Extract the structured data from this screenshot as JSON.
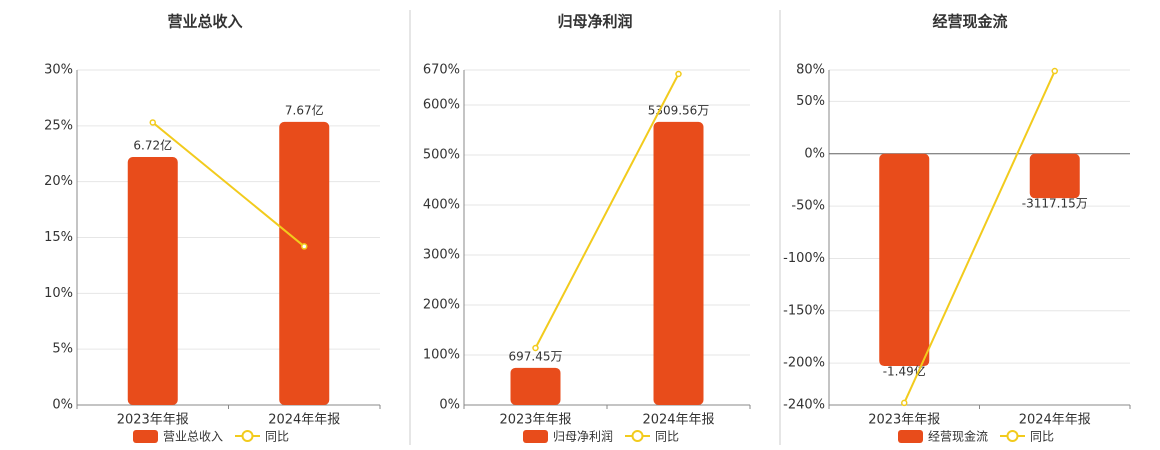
{
  "chart_data": [
    {
      "type": "bar",
      "title": "营业总收入",
      "categories": [
        "2023年年报",
        "2024年年报"
      ],
      "series": [
        {
          "name": "营业总收入",
          "color": "#e84c1b",
          "values": [
            672000000,
            767000000
          ],
          "value_labels": [
            "6.72亿",
            "7.67亿"
          ]
        },
        {
          "name": "同比",
          "color": "#f2cb1d",
          "type": "line",
          "values": [
            25.3,
            14.2
          ]
        }
      ],
      "ylim": [
        0,
        30
      ],
      "yticks": [
        {
          "value": 0,
          "label": "0%"
        },
        {
          "value": 5,
          "label": "5%"
        },
        {
          "value": 10,
          "label": "10%"
        },
        {
          "value": 15,
          "label": "15%"
        },
        {
          "value": 20,
          "label": "20%"
        },
        {
          "value": 25,
          "label": "25%"
        },
        {
          "value": 30,
          "label": "30%"
        }
      ],
      "grid": true
    },
    {
      "type": "bar",
      "title": "归母净利润",
      "categories": [
        "2023年年报",
        "2024年年报"
      ],
      "series": [
        {
          "name": "归母净利润",
          "color": "#e84c1b",
          "values": [
            6974500,
            53095600
          ],
          "value_labels": [
            "697.45万",
            "5309.56万"
          ]
        },
        {
          "name": "同比",
          "color": "#f2cb1d",
          "type": "line",
          "values": [
            114,
            662
          ]
        }
      ],
      "ylim": [
        0,
        670
      ],
      "yticks": [
        {
          "value": 0,
          "label": "0%"
        },
        {
          "value": 100,
          "label": "100%"
        },
        {
          "value": 200,
          "label": "200%"
        },
        {
          "value": 300,
          "label": "300%"
        },
        {
          "value": 400,
          "label": "400%"
        },
        {
          "value": 500,
          "label": "500%"
        },
        {
          "value": 600,
          "label": "600%"
        },
        {
          "value": 670,
          "label": "670%"
        }
      ],
      "grid": true
    },
    {
      "type": "bar",
      "title": "经营现金流",
      "categories": [
        "2023年年报",
        "2024年年报"
      ],
      "series": [
        {
          "name": "经营现金流",
          "color": "#e84c1b",
          "values": [
            -149000000,
            -31171500
          ],
          "value_labels": [
            "-1.49亿",
            "-3117.15万"
          ]
        },
        {
          "name": "同比",
          "color": "#f2cb1d",
          "type": "line",
          "values": [
            -238,
            79
          ]
        }
      ],
      "ylim": [
        -240,
        80
      ],
      "yticks": [
        {
          "value": -240,
          "label": "-240%"
        },
        {
          "value": -200,
          "label": "-200%"
        },
        {
          "value": -150,
          "label": "-150%"
        },
        {
          "value": -100,
          "label": "-100%"
        },
        {
          "value": -50,
          "label": "-50%"
        },
        {
          "value": 0,
          "label": "0%"
        },
        {
          "value": 50,
          "label": "50%"
        },
        {
          "value": 80,
          "label": "80%"
        }
      ],
      "grid": true
    }
  ]
}
